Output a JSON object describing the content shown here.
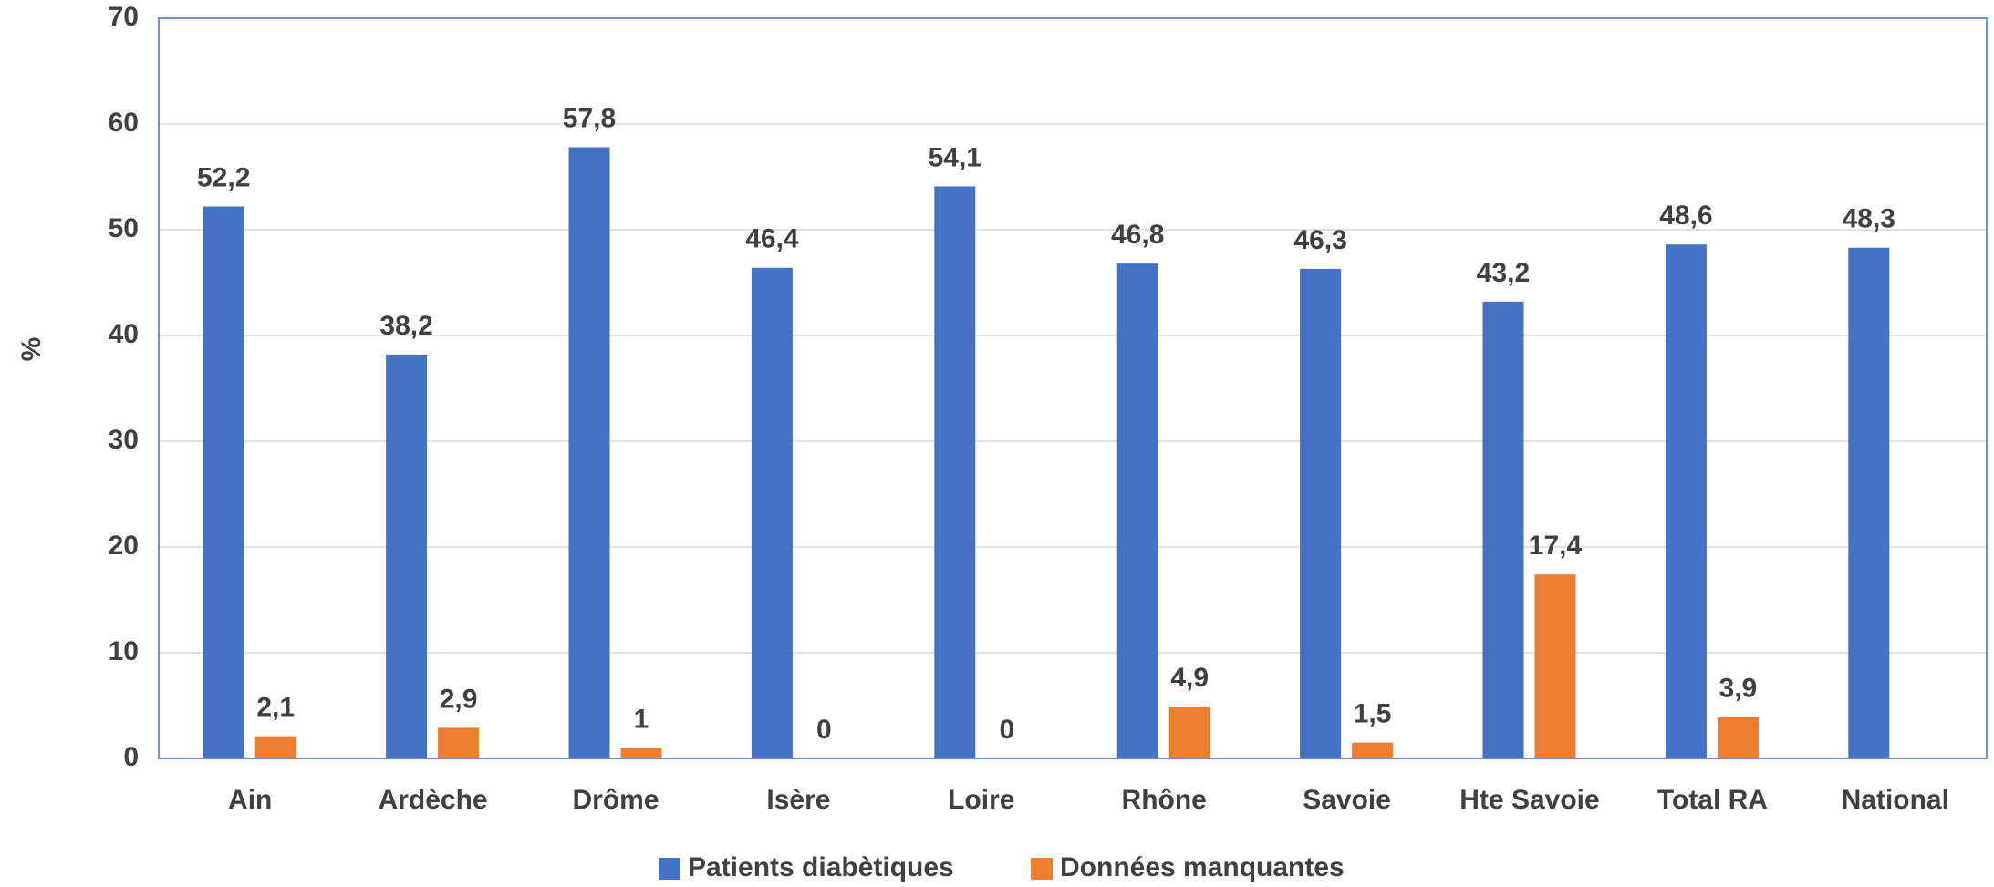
{
  "chart_data": {
    "type": "bar",
    "y_label": "%",
    "categories": [
      "Ain",
      "Ardèche",
      "Drôme",
      "Isère",
      "Loire",
      "Rhône",
      "Savoie",
      "Hte Savoie",
      "Total RA",
      "National"
    ],
    "series": [
      {
        "name": "Patients diabètiques",
        "color": "#4472c4",
        "values": [
          52.2,
          38.2,
          57.8,
          46.4,
          54.1,
          46.8,
          46.3,
          43.2,
          48.6,
          48.3
        ],
        "value_labels": [
          "52,2",
          "38,2",
          "57,8",
          "46,4",
          "54,1",
          "46,8",
          "46,3",
          "43,2",
          "48,6",
          "48,3"
        ]
      },
      {
        "name": "Données manquantes",
        "color": "#ed7d31",
        "values": [
          2.1,
          2.9,
          1,
          0,
          0,
          4.9,
          1.5,
          17.4,
          3.9,
          null
        ],
        "value_labels": [
          "2,1",
          "2,9",
          "1",
          "0",
          "0",
          "4,9",
          "1,5",
          "17,4",
          "3,9",
          null
        ]
      }
    ],
    "ylim": [
      0,
      70
    ],
    "yticks": [
      0,
      10,
      20,
      30,
      40,
      50,
      60,
      70
    ],
    "grid": true,
    "legend": "bottom"
  }
}
